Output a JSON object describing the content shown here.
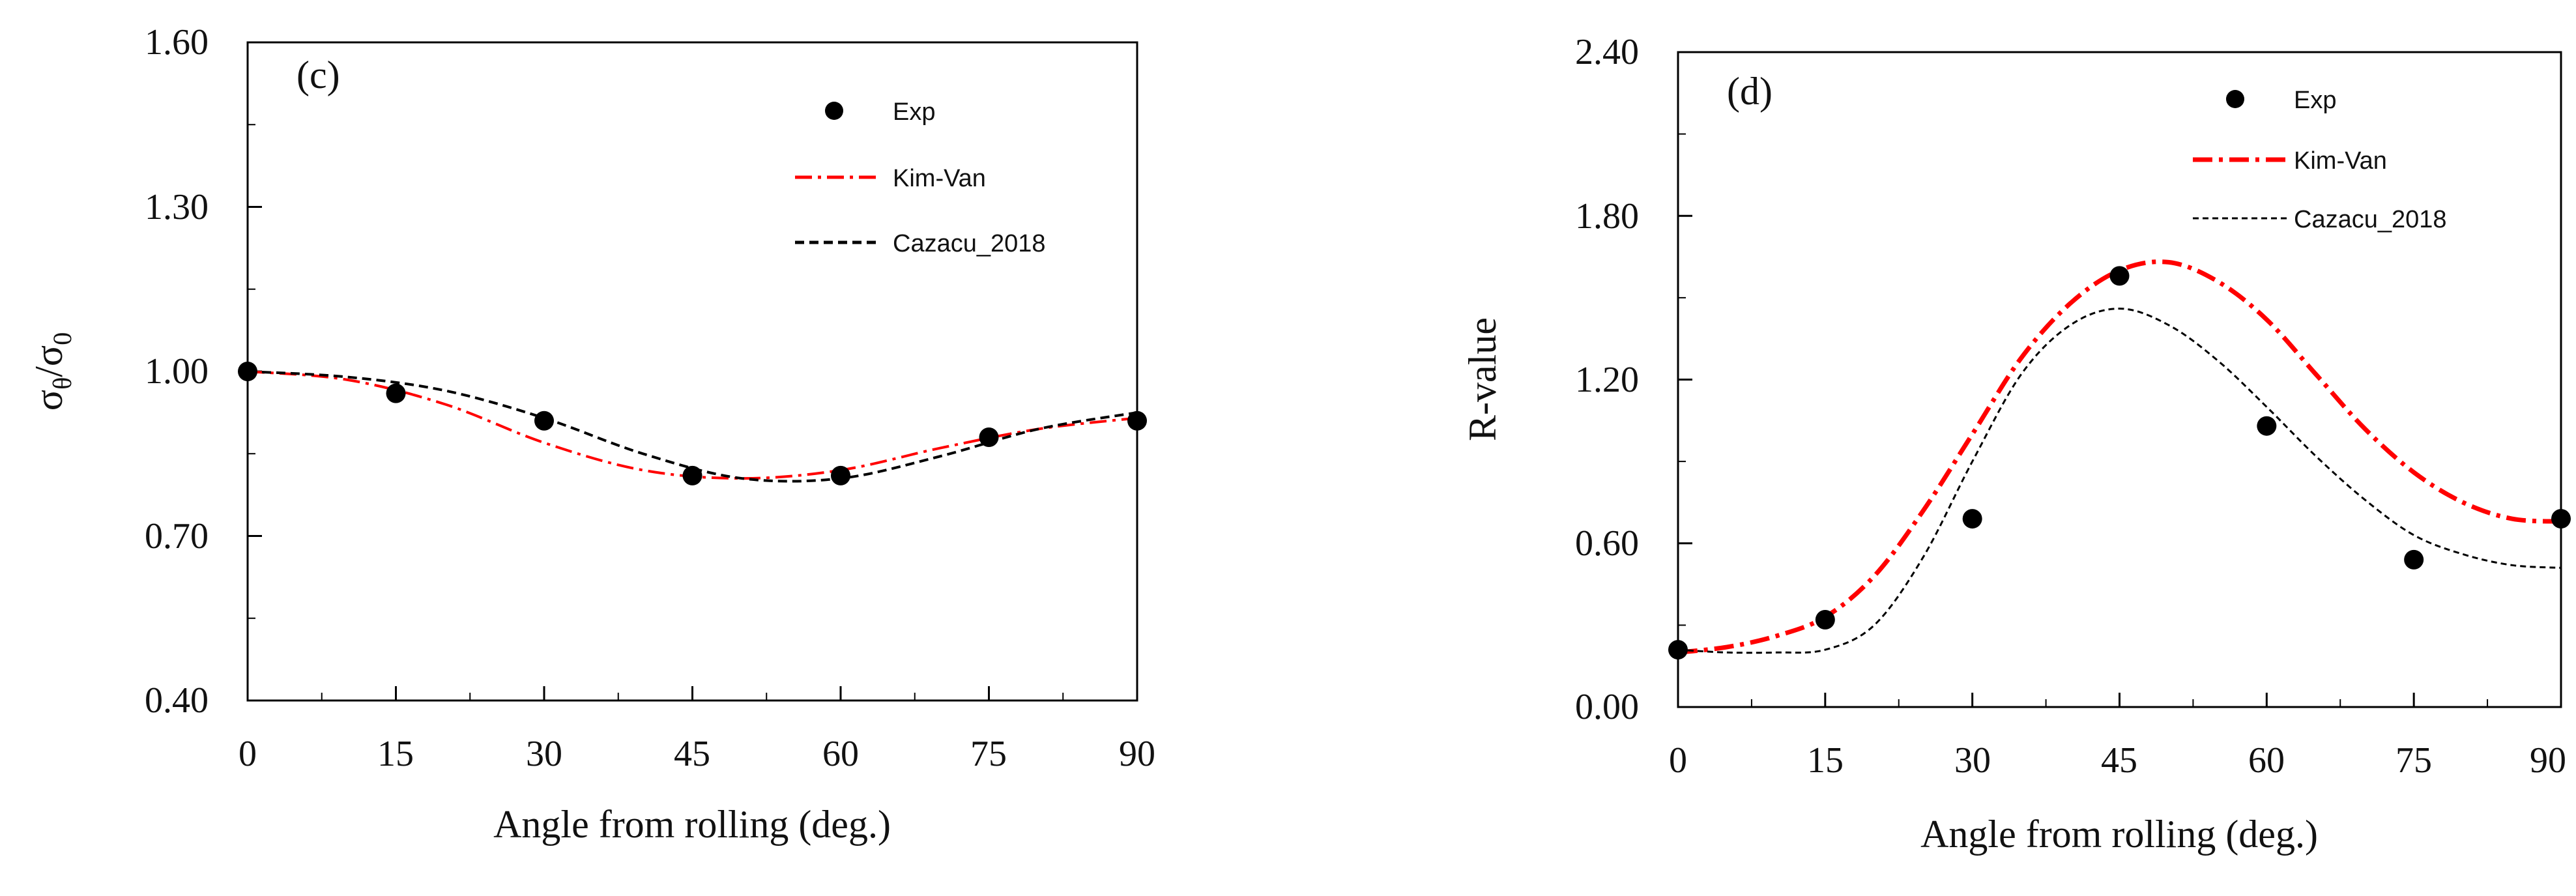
{
  "chart_data": [
    {
      "type": "line",
      "panel_label": "(c)",
      "xlabel": "Angle from rolling (deg.)",
      "ylabel": "σθ/σ0",
      "ylabel_main": "σ",
      "ylabel_sub1": "θ",
      "ylabel_mid": "/σ",
      "ylabel_sub2": "0",
      "xlim": [
        0,
        90
      ],
      "ylim": [
        0.4,
        1.6
      ],
      "xticks": [
        0,
        15,
        30,
        45,
        60,
        75,
        90
      ],
      "xtick_labels": [
        "0",
        "15",
        "30",
        "45",
        "60",
        "75",
        "90"
      ],
      "yticks": [
        0.4,
        0.7,
        1.0,
        1.3,
        1.6
      ],
      "ytick_labels": [
        "0.40",
        "0.70",
        "1.00",
        "1.30",
        "1.60"
      ],
      "legend_position": "top-right",
      "series": [
        {
          "name": "Exp",
          "style": "markers",
          "color": "#000000",
          "x": [
            0,
            15,
            30,
            45,
            60,
            75,
            90
          ],
          "y": [
            1.0,
            0.96,
            0.91,
            0.81,
            0.81,
            0.88,
            0.91
          ]
        },
        {
          "name": "Kim-Van",
          "style": "dash-dot",
          "color": "#ff0000",
          "x": [
            0,
            10,
            20,
            30,
            40,
            50,
            60,
            70,
            80,
            90
          ],
          "y": [
            1.0,
            0.985,
            0.94,
            0.87,
            0.82,
            0.805,
            0.82,
            0.86,
            0.895,
            0.915
          ]
        },
        {
          "name": "Cazacu_2018",
          "style": "dashed",
          "color": "#000000",
          "x": [
            0,
            10,
            20,
            30,
            40,
            50,
            60,
            70,
            80,
            90
          ],
          "y": [
            1.0,
            0.99,
            0.965,
            0.915,
            0.85,
            0.805,
            0.805,
            0.845,
            0.895,
            0.925
          ]
        }
      ]
    },
    {
      "type": "line",
      "panel_label": "(d)",
      "xlabel": "Angle from rolling (deg.)",
      "ylabel": "R-value",
      "xlim": [
        0,
        90
      ],
      "ylim": [
        0.0,
        2.4
      ],
      "xticks": [
        0,
        15,
        30,
        45,
        60,
        75,
        90
      ],
      "xtick_labels": [
        "0",
        "15",
        "30",
        "45",
        "60",
        "75",
        "90"
      ],
      "yticks": [
        0.0,
        0.6,
        1.2,
        1.8,
        2.4
      ],
      "ytick_labels": [
        "0.00",
        "0.60",
        "1.20",
        "1.80",
        "2.40"
      ],
      "legend_position": "top-right",
      "series": [
        {
          "name": "Exp",
          "style": "markers",
          "color": "#000000",
          "x": [
            0,
            15,
            30,
            45,
            60,
            75,
            90
          ],
          "y": [
            0.21,
            0.32,
            0.69,
            1.58,
            1.03,
            0.54,
            0.69
          ]
        },
        {
          "name": "Kim-Van",
          "style": "dash-dot",
          "color": "#ff0000",
          "x": [
            0,
            5,
            10,
            15,
            20,
            25,
            30,
            35,
            40,
            45,
            50,
            55,
            60,
            65,
            70,
            75,
            80,
            85,
            90
          ],
          "y": [
            0.2,
            0.22,
            0.26,
            0.33,
            0.48,
            0.72,
            1.0,
            1.28,
            1.48,
            1.6,
            1.63,
            1.56,
            1.42,
            1.22,
            1.02,
            0.86,
            0.75,
            0.69,
            0.68
          ]
        },
        {
          "name": "Cazacu_2018",
          "style": "dashed",
          "color": "#000000",
          "x": [
            0,
            5,
            10,
            15,
            20,
            25,
            30,
            35,
            40,
            45,
            50,
            55,
            60,
            65,
            70,
            75,
            80,
            85,
            90
          ],
          "y": [
            0.21,
            0.2,
            0.2,
            0.21,
            0.3,
            0.55,
            0.9,
            1.22,
            1.4,
            1.46,
            1.4,
            1.27,
            1.1,
            0.92,
            0.76,
            0.63,
            0.56,
            0.52,
            0.51
          ]
        }
      ]
    }
  ]
}
